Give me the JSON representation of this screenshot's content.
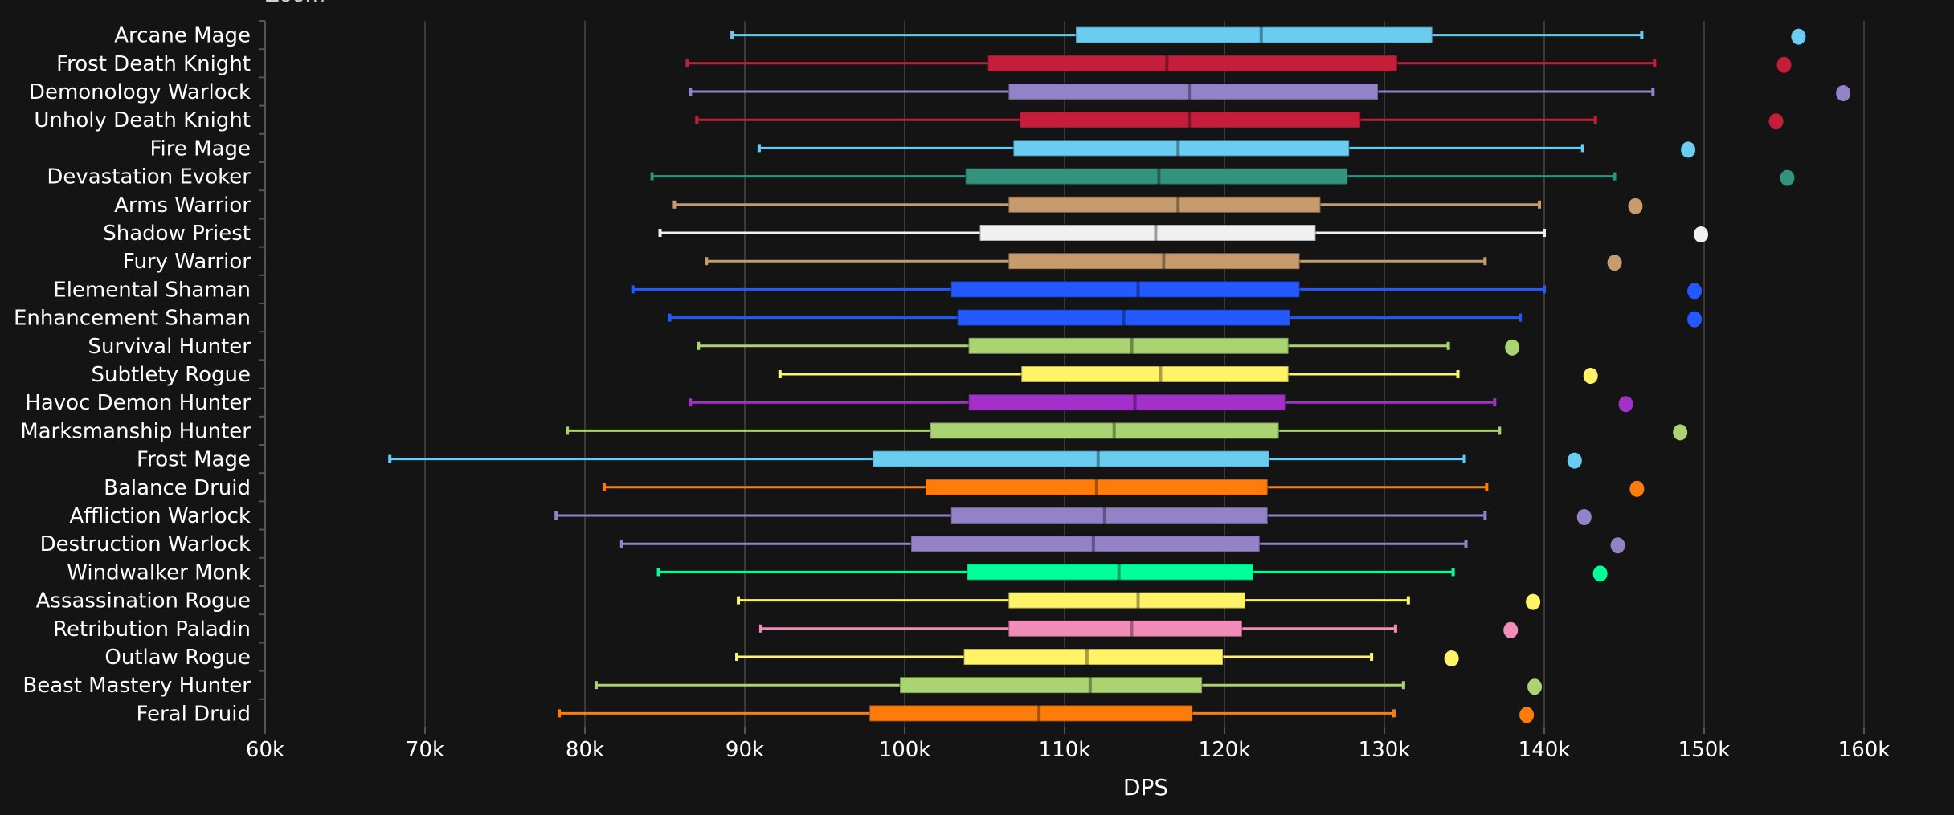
{
  "header": {
    "clipped_text": "Zoom"
  },
  "chart_data": {
    "type": "boxplot",
    "orientation": "horizontal",
    "xlabel": "DPS",
    "ylabel": "",
    "xlim": [
      60000,
      160000
    ],
    "xticks": [
      60000,
      70000,
      80000,
      90000,
      100000,
      110000,
      120000,
      130000,
      140000,
      150000,
      160000
    ],
    "xtick_labels": [
      "60k",
      "70k",
      "80k",
      "90k",
      "100k",
      "110k",
      "120k",
      "130k",
      "140k",
      "150k",
      "160k"
    ],
    "grid": "vertical",
    "series": [
      {
        "name": "Arcane Mage",
        "color": "#69ccf0",
        "min": 89200,
        "q1": 110700,
        "median": 122300,
        "q3": 133000,
        "max": 146100,
        "outlier": 155900
      },
      {
        "name": "Frost Death Knight",
        "color": "#c41e3a",
        "min": 86400,
        "q1": 105200,
        "median": 116400,
        "q3": 130800,
        "max": 146900,
        "outlier": 155000
      },
      {
        "name": "Demonology Warlock",
        "color": "#9482c9",
        "min": 86600,
        "q1": 106500,
        "median": 117800,
        "q3": 129600,
        "max": 146800,
        "outlier": 158700
      },
      {
        "name": "Unholy Death Knight",
        "color": "#c41e3a",
        "min": 87000,
        "q1": 107200,
        "median": 117800,
        "q3": 128500,
        "max": 143200,
        "outlier": 154500
      },
      {
        "name": "Fire Mage",
        "color": "#69ccf0",
        "min": 90900,
        "q1": 106800,
        "median": 117100,
        "q3": 127800,
        "max": 142400,
        "outlier": 149000
      },
      {
        "name": "Devastation Evoker",
        "color": "#33937f",
        "min": 84200,
        "q1": 103800,
        "median": 115900,
        "q3": 127700,
        "max": 144400,
        "outlier": 155200
      },
      {
        "name": "Arms Warrior",
        "color": "#c69b6d",
        "min": 85600,
        "q1": 106500,
        "median": 117100,
        "q3": 126000,
        "max": 139700,
        "outlier": 145700
      },
      {
        "name": "Shadow Priest",
        "color": "#f0f0f0",
        "min": 84700,
        "q1": 104700,
        "median": 115700,
        "q3": 125700,
        "max": 140000,
        "outlier": 149800
      },
      {
        "name": "Fury Warrior",
        "color": "#c69b6d",
        "min": 87600,
        "q1": 106500,
        "median": 116200,
        "q3": 124700,
        "max": 136300,
        "outlier": 144400
      },
      {
        "name": "Elemental Shaman",
        "color": "#2459ff",
        "min": 83000,
        "q1": 102900,
        "median": 114600,
        "q3": 124700,
        "max": 140000,
        "outlier": 149400
      },
      {
        "name": "Enhancement Shaman",
        "color": "#2459ff",
        "min": 85300,
        "q1": 103300,
        "median": 113700,
        "q3": 124100,
        "max": 138500,
        "outlier": 149400
      },
      {
        "name": "Survival Hunter",
        "color": "#aad372",
        "min": 87100,
        "q1": 104000,
        "median": 114200,
        "q3": 124000,
        "max": 134000,
        "outlier": 138000
      },
      {
        "name": "Subtlety Rogue",
        "color": "#fff468",
        "min": 92200,
        "q1": 107300,
        "median": 116000,
        "q3": 124000,
        "max": 134600,
        "outlier": 142900
      },
      {
        "name": "Havoc Demon Hunter",
        "color": "#a330c9",
        "min": 86600,
        "q1": 104000,
        "median": 114400,
        "q3": 123800,
        "max": 136900,
        "outlier": 145100
      },
      {
        "name": "Marksmanship Hunter",
        "color": "#aad372",
        "min": 78900,
        "q1": 101600,
        "median": 113100,
        "q3": 123400,
        "max": 137200,
        "outlier": 148500
      },
      {
        "name": "Frost Mage",
        "color": "#69ccf0",
        "min": 67800,
        "q1": 98000,
        "median": 112100,
        "q3": 122800,
        "max": 135000,
        "outlier": 141900
      },
      {
        "name": "Balance Druid",
        "color": "#ff7c0a",
        "min": 81200,
        "q1": 101300,
        "median": 112000,
        "q3": 122700,
        "max": 136400,
        "outlier": 145800
      },
      {
        "name": "Affliction Warlock",
        "color": "#9482c9",
        "min": 78200,
        "q1": 102900,
        "median": 112500,
        "q3": 122700,
        "max": 136300,
        "outlier": 142500
      },
      {
        "name": "Destruction Warlock",
        "color": "#9482c9",
        "min": 82300,
        "q1": 100400,
        "median": 111800,
        "q3": 122200,
        "max": 135100,
        "outlier": 144600
      },
      {
        "name": "Windwalker Monk",
        "color": "#00ff98",
        "min": 84600,
        "q1": 103900,
        "median": 113400,
        "q3": 121800,
        "max": 134300,
        "outlier": 143500
      },
      {
        "name": "Assassination Rogue",
        "color": "#fff468",
        "min": 89600,
        "q1": 106500,
        "median": 114600,
        "q3": 121300,
        "max": 131500,
        "outlier": 139300
      },
      {
        "name": "Retribution Paladin",
        "color": "#f48cba",
        "min": 91000,
        "q1": 106500,
        "median": 114200,
        "q3": 121100,
        "max": 130700,
        "outlier": 137900
      },
      {
        "name": "Outlaw Rogue",
        "color": "#fff468",
        "min": 89500,
        "q1": 103700,
        "median": 111400,
        "q3": 119900,
        "max": 129200,
        "outlier": 134200
      },
      {
        "name": "Beast Mastery Hunter",
        "color": "#aad372",
        "min": 80700,
        "q1": 99700,
        "median": 111600,
        "q3": 118600,
        "max": 131200,
        "outlier": 139400
      },
      {
        "name": "Feral Druid",
        "color": "#ff7c0a",
        "min": 78400,
        "q1": 97800,
        "median": 108400,
        "q3": 118000,
        "max": 130600,
        "outlier": 138900
      }
    ]
  }
}
